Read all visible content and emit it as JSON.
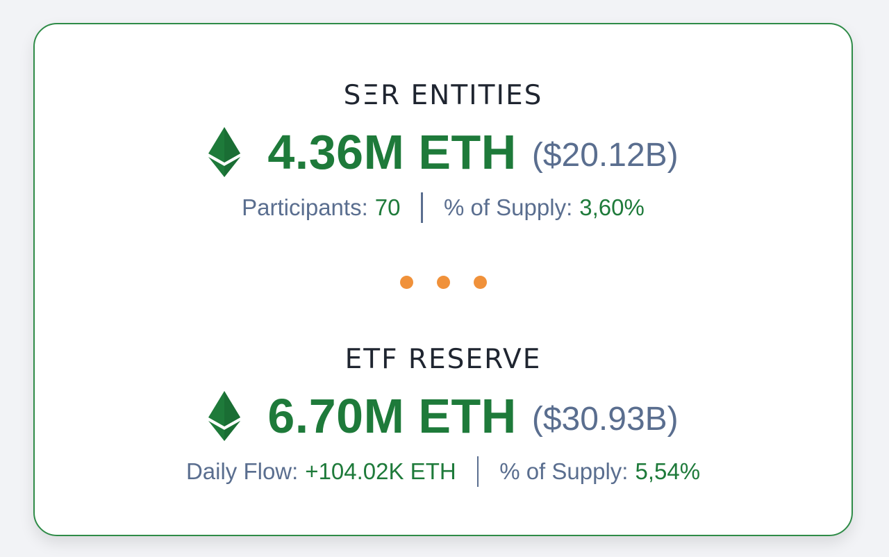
{
  "colors": {
    "accent_green": "#1e7a3a",
    "muted_blue": "#5a6e8f",
    "dot_orange": "#f0913a",
    "border_green": "#2e8b47"
  },
  "ser_entities": {
    "title": "SΞR ENTITIES",
    "icon": "ethereum-icon",
    "amount": "4.36M ETH",
    "usd": "($20.12B)",
    "stat1_label": "Participants:",
    "stat1_value": "70",
    "stat2_label": "% of Supply:",
    "stat2_value": "3,60%"
  },
  "separator": {
    "icon": "three-dots"
  },
  "etf_reserve": {
    "title": "ETF RESERVE",
    "icon": "ethereum-icon",
    "amount": "6.70M ETH",
    "usd": "($30.93B)",
    "stat1_label": "Daily Flow:",
    "stat1_value": "+104.02K ETH",
    "stat2_label": "% of Supply:",
    "stat2_value": "5,54%"
  }
}
